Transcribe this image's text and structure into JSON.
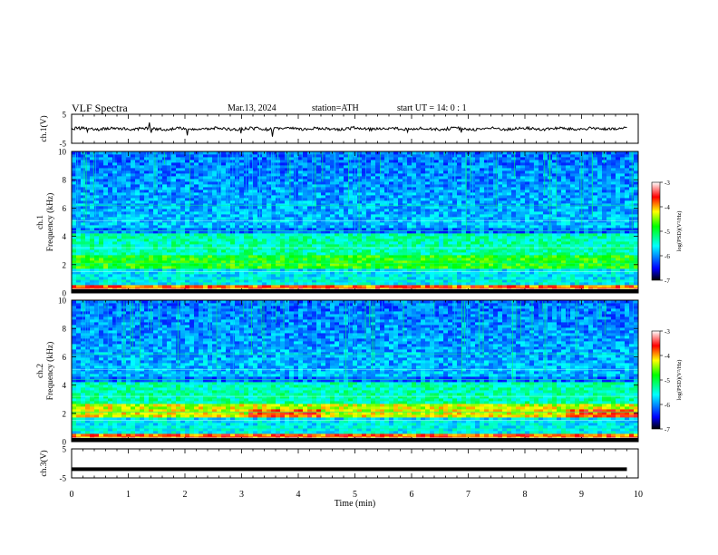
{
  "header": {
    "title": "VLF  Spectra",
    "date": "Mar.13, 2024",
    "station": "station=ATH",
    "start": "start  UT  =   14: 0  : 1"
  },
  "chart_data": [
    {
      "type": "line",
      "panel": "ch1-waveform",
      "ylabel": "ch.1(V)",
      "ylim": [
        -5,
        5
      ],
      "y_ticks": [
        "5",
        "-5"
      ],
      "xlim": [
        0,
        10
      ],
      "description_series": "noisy waveform centred near 0 V with occasional spikes",
      "approx_level": 0
    },
    {
      "type": "heatmap",
      "panel": "ch1-spectrogram",
      "ylabel": "ch.1 Frequency (kHz)",
      "ylim": [
        0,
        10
      ],
      "y_ticks": [
        "0",
        "2",
        "4",
        "6",
        "8",
        "10"
      ],
      "xlim": [
        0,
        10
      ],
      "colorbar": {
        "label": "log(PSD)(V²/Hz)",
        "range": [
          -7,
          -3
        ],
        "ticks": [
          "-3",
          "-4",
          "-5",
          "-6",
          "-7"
        ],
        "colormap": [
          "#000000",
          "#0000ff",
          "#00ffff",
          "#00ff00",
          "#ffff00",
          "#ff0000",
          "#ffffff"
        ]
      }
    },
    {
      "type": "heatmap",
      "panel": "ch2-spectrogram",
      "ylabel": "ch.2 Frequency (kHz)",
      "ylim": [
        0,
        10
      ],
      "y_ticks": [
        "0",
        "2",
        "4",
        "6",
        "8",
        "10"
      ],
      "xlim": [
        0,
        10
      ],
      "colorbar": {
        "label": "log(PSD)(V²/Hz)",
        "range": [
          -7,
          -3
        ],
        "ticks": [
          "-3",
          "-4",
          "-5",
          "-6",
          "-7"
        ],
        "colormap": [
          "#000000",
          "#0000ff",
          "#00ffff",
          "#00ff00",
          "#ffff00",
          "#ff0000",
          "#ffffff"
        ]
      }
    },
    {
      "type": "line",
      "panel": "ch3-waveform",
      "ylabel": "ch.3(V)",
      "ylim": [
        -5,
        5
      ],
      "y_ticks": [
        "5",
        "-5"
      ],
      "xlim": [
        0,
        10
      ],
      "approx_level": -2
    }
  ],
  "x_axis": {
    "label": "Time  (min)",
    "ticks": [
      "0",
      "1",
      "2",
      "3",
      "4",
      "5",
      "6",
      "7",
      "8",
      "9",
      "10"
    ]
  }
}
